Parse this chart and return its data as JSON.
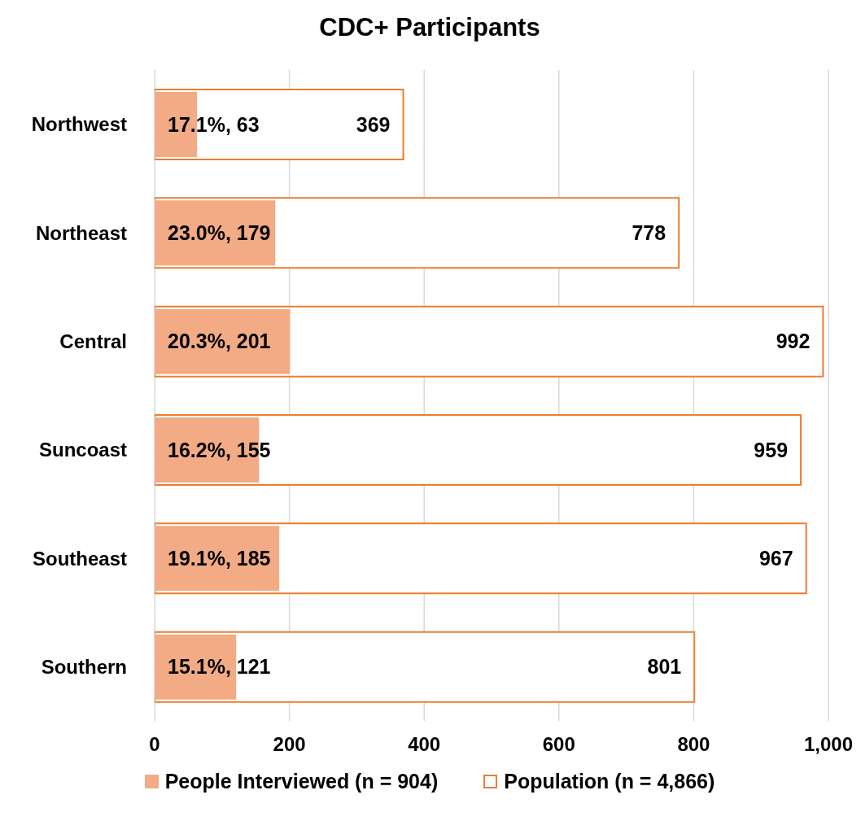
{
  "chart_data": {
    "type": "bar",
    "orientation": "horizontal",
    "title": "CDC+ Participants",
    "categories": [
      "Northwest",
      "Northeast",
      "Central",
      "Suncoast",
      "Southeast",
      "Southern"
    ],
    "series": [
      {
        "name": "People Interviewed (n = 904)",
        "color": "#f2ab85",
        "values": [
          63,
          179,
          201,
          155,
          185,
          121
        ],
        "value_labels": [
          "17.1%, 63",
          "23.0%, 179",
          "20.3%, 201",
          "16.2%, 155",
          "19.1%, 185",
          "15.1%, 121"
        ]
      },
      {
        "name": "Population (n = 4,866)",
        "color": "#ed7d31",
        "values": [
          369,
          778,
          992,
          959,
          967,
          801
        ],
        "value_labels": [
          "369",
          "778",
          "992",
          "959",
          "967",
          "801"
        ]
      }
    ],
    "xlim": [
      0,
      1000
    ],
    "xticks": [
      0,
      200,
      400,
      600,
      800,
      {
        "value": 1000,
        "label": "1,000"
      }
    ],
    "grid": "x",
    "legend": "bottom"
  }
}
